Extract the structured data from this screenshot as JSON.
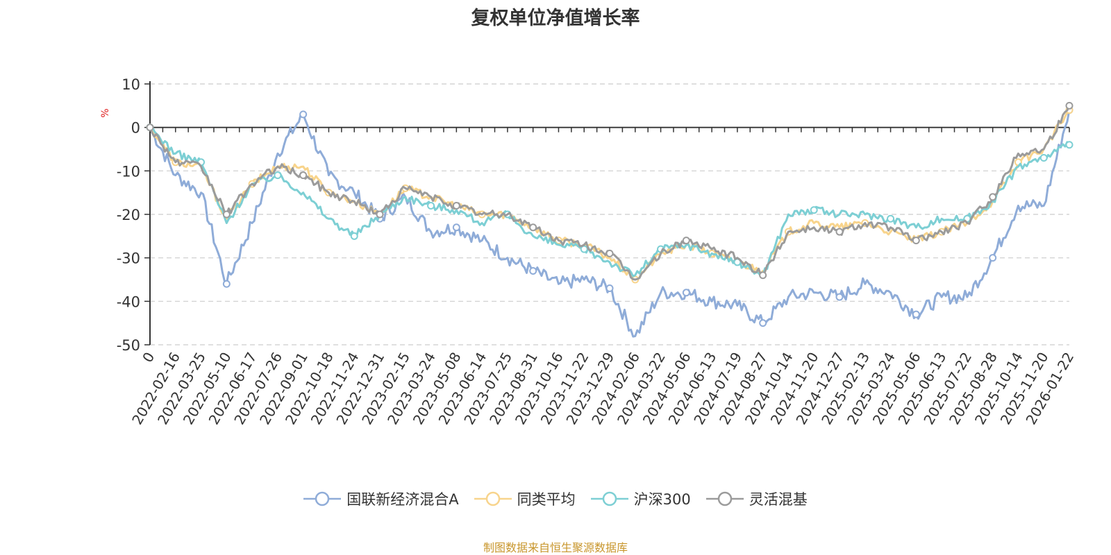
{
  "chart_data": {
    "type": "line",
    "title": "复权单位净值增长率",
    "ylabel": "%",
    "xlabel": "",
    "ylim": [
      -50,
      10
    ],
    "yticks": [
      10,
      0,
      -10,
      -20,
      -30,
      -40,
      -50
    ],
    "grid": true,
    "legend_position": "bottom",
    "categories": [
      "0",
      "2022-02-16",
      "2022-03-25",
      "2022-05-10",
      "2022-06-17",
      "2022-07-26",
      "2022-09-01",
      "2022-10-18",
      "2022-11-24",
      "2022-12-31",
      "2023-02-15",
      "2023-03-24",
      "2023-05-08",
      "2023-06-14",
      "2023-07-25",
      "2023-08-31",
      "2023-10-16",
      "2023-11-22",
      "2023-12-29",
      "2024-02-06",
      "2024-03-22",
      "2024-05-06",
      "2024-06-13",
      "2024-07-19",
      "2024-08-27",
      "2024-10-14",
      "2024-11-20",
      "2024-12-27",
      "2025-02-13",
      "2025-03-24",
      "2025-05-06",
      "2025-06-13",
      "2025-07-22",
      "2025-08-28",
      "2025-10-14",
      "2025-11-20",
      "2026-01-22"
    ],
    "series": [
      {
        "name": "国联新经济混合A",
        "color": "#8facd8",
        "values": [
          0,
          -11,
          -15,
          -36,
          -22,
          -6,
          3,
          -11,
          -15,
          -21,
          -16,
          -24,
          -23,
          -26,
          -30,
          -33,
          -36,
          -35,
          -37,
          -48,
          -38,
          -38,
          -40,
          -41,
          -45,
          -39,
          -38,
          -39,
          -36,
          -38,
          -43,
          -39,
          -39,
          -30,
          -18,
          -18,
          4
        ]
      },
      {
        "name": "同类平均",
        "color": "#f8d48c",
        "values": [
          0,
          -8,
          -9,
          -21,
          -13,
          -9,
          -9,
          -15,
          -17,
          -20,
          -14,
          -16,
          -18,
          -20,
          -20,
          -23,
          -26,
          -27,
          -30,
          -35,
          -29,
          -27,
          -29,
          -31,
          -33,
          -24,
          -22,
          -23,
          -22,
          -24,
          -26,
          -24,
          -22,
          -17,
          -8,
          -5,
          4
        ]
      },
      {
        "name": "沪深300",
        "color": "#7dcfd4",
        "values": [
          0,
          -6,
          -8,
          -22,
          -13,
          -11,
          -15,
          -21,
          -25,
          -20,
          -16,
          -18,
          -19,
          -22,
          -20,
          -25,
          -27,
          -28,
          -31,
          -34,
          -28,
          -27,
          -29,
          -31,
          -34,
          -20,
          -19,
          -20,
          -20,
          -21,
          -23,
          -21,
          -21,
          -17,
          -9,
          -7,
          -4
        ]
      },
      {
        "name": "灵活混基",
        "color": "#9b9b9b",
        "values": [
          0,
          -8,
          -9,
          -20,
          -13,
          -9,
          -11,
          -15,
          -17,
          -20,
          -14,
          -16,
          -18,
          -20,
          -20,
          -23,
          -26,
          -27,
          -29,
          -35,
          -29,
          -26,
          -28,
          -30,
          -34,
          -24,
          -23,
          -24,
          -22,
          -23,
          -26,
          -24,
          -22,
          -16,
          -6,
          -5,
          5
        ]
      }
    ]
  },
  "source_text": "制图数据来自恒生聚源数据库"
}
